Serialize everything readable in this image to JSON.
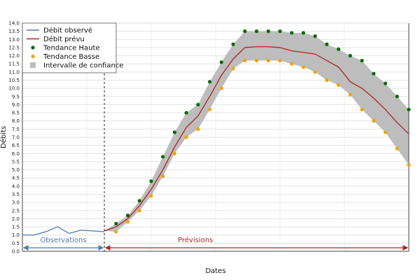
{
  "chart_data": {
    "type": "line",
    "xlabel": "Dates",
    "ylabel": "Débits",
    "ylim": [
      0,
      14
    ],
    "yticks": [
      "0.0",
      "0.5",
      "1.0",
      "1.5",
      "2.0",
      "2.5",
      "3.0",
      "3.5",
      "4.0",
      "4.5",
      "5.0",
      "5.5",
      "6.0",
      "6.5",
      "7.0",
      "7.5",
      "8.0",
      "8.5",
      "9.0",
      "9.5",
      "10.0",
      "10.5",
      "11.0",
      "11.5",
      "12.0",
      "12.5",
      "13.0",
      "13.5",
      "14.0"
    ],
    "grid": true,
    "legend_position": "top-left",
    "legend": [
      {
        "label": "Débit observé",
        "kind": "line",
        "color": "#4a7bb0"
      },
      {
        "label": "Débit prévu",
        "kind": "line",
        "color": "#b22222"
      },
      {
        "label": "Tendance Haute",
        "kind": "marker",
        "color": "#0a6a0a"
      },
      {
        "label": "Tendance Basse",
        "kind": "marker",
        "color": "#f0a500"
      },
      {
        "label": "Intervalle de confiance",
        "kind": "square",
        "color": "#bdbdbd"
      }
    ],
    "regions": {
      "observations_label": "Observations",
      "previsions_label": "Prévisions",
      "observations_color": "#4a7bb0",
      "previsions_color": "#b22222"
    },
    "x_range": [
      0,
      33
    ],
    "split_x": 7,
    "series": [
      {
        "name": "Débit observé",
        "color": "#4a7bb0",
        "x": [
          0,
          1,
          2,
          3,
          4,
          5,
          6,
          7
        ],
        "values": [
          1.0,
          1.0,
          1.2,
          1.5,
          1.1,
          1.3,
          1.25,
          1.2
        ]
      },
      {
        "name": "Débit prévu",
        "color": "#b22222",
        "x": [
          7,
          8,
          9,
          10,
          11,
          12,
          13,
          14,
          15,
          16,
          17,
          18,
          19,
          20,
          21,
          22,
          23,
          24,
          25,
          26,
          27,
          28,
          29,
          30,
          31,
          32,
          33
        ],
        "values": [
          1.25,
          1.5,
          2.0,
          2.8,
          3.8,
          5.0,
          6.4,
          7.6,
          8.3,
          9.5,
          10.8,
          11.8,
          12.5,
          12.55,
          12.55,
          12.5,
          12.3,
          12.2,
          12.1,
          11.7,
          11.3,
          10.4,
          10.0,
          9.4,
          8.7,
          7.9,
          7.2
        ]
      },
      {
        "name": "Tendance Haute",
        "color": "#0a6a0a",
        "x": [
          8,
          9,
          10,
          11,
          12,
          13,
          14,
          15,
          16,
          17,
          18,
          19,
          20,
          21,
          22,
          23,
          24,
          25,
          26,
          27,
          28,
          29,
          30,
          31,
          32,
          33
        ],
        "values": [
          1.7,
          2.2,
          3.1,
          4.3,
          5.8,
          7.3,
          8.5,
          9.0,
          10.4,
          11.6,
          12.7,
          13.5,
          13.5,
          13.5,
          13.5,
          13.4,
          13.4,
          13.2,
          12.7,
          12.4,
          12.0,
          11.7,
          10.9,
          10.3,
          9.5,
          8.7
        ]
      },
      {
        "name": "Tendance Basse",
        "color": "#f0a500",
        "x": [
          8,
          9,
          10,
          11,
          12,
          13,
          14,
          15,
          16,
          17,
          18,
          19,
          20,
          21,
          22,
          23,
          24,
          25,
          26,
          27,
          28,
          29,
          30,
          31,
          32,
          33
        ],
        "values": [
          1.2,
          1.8,
          2.5,
          3.4,
          4.6,
          6.0,
          7.0,
          7.5,
          8.7,
          10.0,
          11.2,
          11.7,
          11.7,
          11.7,
          11.7,
          11.5,
          11.3,
          11.0,
          10.5,
          10.2,
          9.6,
          8.7,
          8.0,
          7.3,
          6.3,
          5.3
        ]
      }
    ],
    "band": {
      "name": "Intervalle de confiance",
      "color": "#bdbdbd",
      "x": [
        7,
        8,
        9,
        10,
        11,
        12,
        13,
        14,
        15,
        16,
        17,
        18,
        19,
        20,
        21,
        22,
        23,
        24,
        25,
        26,
        27,
        28,
        29,
        30,
        31,
        32,
        33
      ],
      "upper": [
        1.25,
        1.7,
        2.2,
        3.1,
        4.3,
        5.8,
        7.3,
        8.5,
        9.0,
        10.4,
        11.6,
        12.7,
        13.5,
        13.5,
        13.5,
        13.5,
        13.4,
        13.4,
        13.2,
        12.7,
        12.4,
        12.0,
        11.7,
        10.9,
        10.3,
        9.5,
        8.7
      ],
      "lower": [
        1.25,
        1.2,
        1.8,
        2.5,
        3.4,
        4.6,
        6.0,
        7.0,
        7.5,
        8.7,
        10.0,
        11.2,
        11.7,
        11.7,
        11.7,
        11.7,
        11.5,
        11.3,
        11.0,
        10.5,
        10.2,
        9.6,
        8.7,
        8.0,
        7.3,
        6.3,
        5.3
      ]
    }
  }
}
